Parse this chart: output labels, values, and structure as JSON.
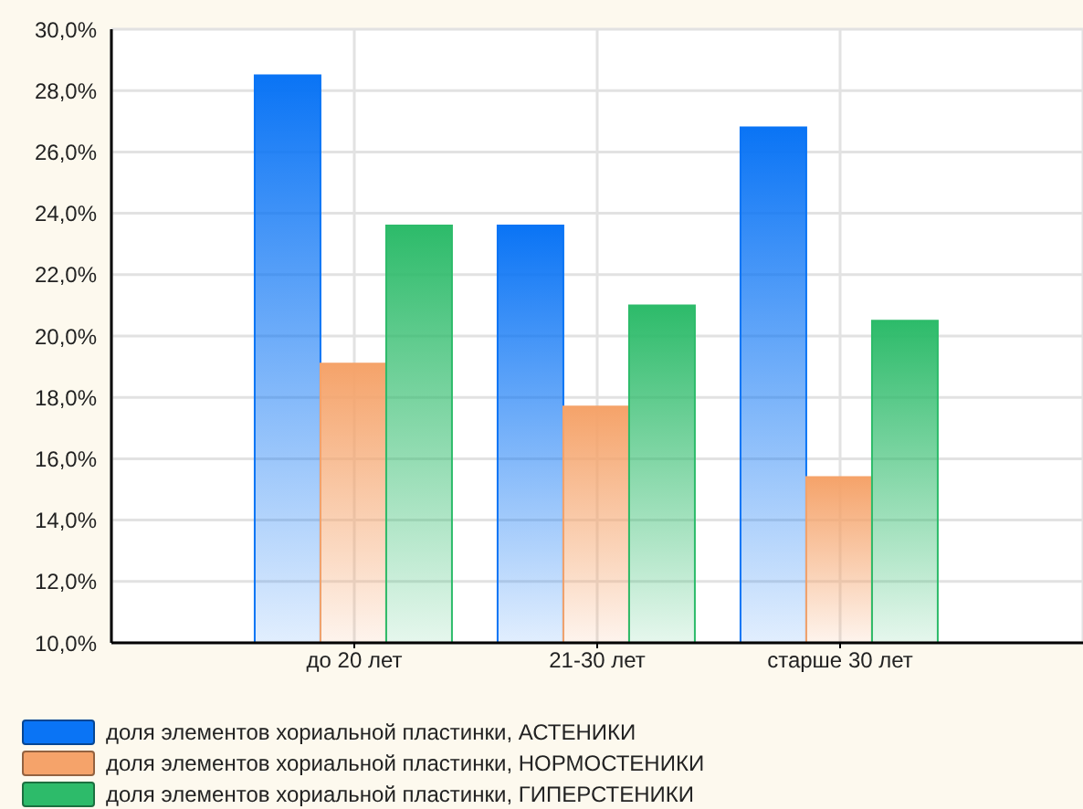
{
  "chart_data": {
    "type": "bar",
    "categories": [
      "до 20 лет",
      "21-30 лет",
      "старше 30 лет"
    ],
    "series": [
      {
        "name": "доля элементов хориальной пластинки, АСТЕНИКИ",
        "color": "#0a74f5",
        "values": [
          28.5,
          23.6,
          26.8
        ]
      },
      {
        "name": "доля элементов хориальной пластинки, НОРМОСТЕНИКИ",
        "color": "#f5a36a",
        "values": [
          19.1,
          17.7,
          15.4
        ]
      },
      {
        "name": "доля элементов хориальной пластинки, ГИПЕРСТЕНИКИ",
        "color": "#2dbb6a",
        "values": [
          23.6,
          21.0,
          20.5
        ]
      }
    ],
    "ylim": [
      10,
      30
    ],
    "yticks": [
      {
        "value": 10,
        "label": "10,0%"
      },
      {
        "value": 12,
        "label": "12,0%"
      },
      {
        "value": 14,
        "label": "14,0%"
      },
      {
        "value": 16,
        "label": "16,0%"
      },
      {
        "value": 18,
        "label": "18,0%"
      },
      {
        "value": 20,
        "label": "20,0%"
      },
      {
        "value": 22,
        "label": "22,0%"
      },
      {
        "value": 24,
        "label": "24,0%"
      },
      {
        "value": 26,
        "label": "26,0%"
      },
      {
        "value": 28,
        "label": "28,0%"
      },
      {
        "value": 30,
        "label": "30,0%"
      }
    ],
    "grid": true,
    "legend": "bottom left"
  }
}
